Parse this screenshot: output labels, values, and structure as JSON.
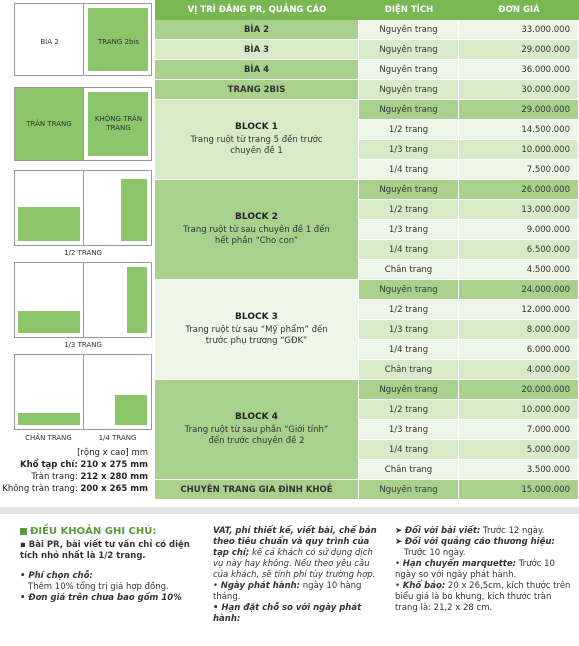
{
  "illustrations": {
    "pair1_left": "BÌA 2",
    "pair1_right": "TRANG 2bis",
    "pair2_left": "TRÀN TRANG",
    "pair2_right": "KHÔNG TRÀN TRANG",
    "half_page": "1/2 TRANG",
    "third_page": "1/3 TRANG",
    "bottom_page": "CHÂN TRANG",
    "quarter_page": "1/4 TRANG"
  },
  "sizes": {
    "unit": "[rộng x cao] mm",
    "magazine_label": "Khổ tạp chí:",
    "magazine_value": "210 x 275 mm",
    "bleed_label": "Tràn trang:",
    "bleed_value": "212 x 280 mm",
    "nobleed_label": "Không tràn trang:",
    "nobleed_value": "200 x 265 mm"
  },
  "table": {
    "headers": [
      "VỊ TRÍ ĐĂNG PR, QUẢNG CÁO",
      "DIỆN TÍCH",
      "ĐƠN GIÁ"
    ],
    "simple_rows": [
      {
        "pos": "BÌA 2",
        "area": "Nguyên trang",
        "price": "33.000.000"
      },
      {
        "pos": "BÌA 3",
        "area": "Nguyên trang",
        "price": "29.000.000"
      },
      {
        "pos": "BÌA 4",
        "area": "Nguyên trang",
        "price": "36.000.000"
      },
      {
        "pos": "TRANG 2BIS",
        "area": "Nguyên trang",
        "price": "30.000.000"
      }
    ],
    "blocks": [
      {
        "title": "BLOCK 1",
        "desc": "Trang ruột từ trang 5 đến trước chuyên đề 1",
        "rows": [
          {
            "area": "Nguyên trang",
            "price": "29.000.000"
          },
          {
            "area": "1/2 trang",
            "price": "14.500.000"
          },
          {
            "area": "1/3 trang",
            "price": "10.000.000"
          },
          {
            "area": "1/4 trang",
            "price": "7.500.000"
          }
        ]
      },
      {
        "title": "BLOCK 2",
        "desc": "Trang ruột  từ sau chuyên đề 1 đến hết phần  “Cho con”",
        "rows": [
          {
            "area": "Nguyên trang",
            "price": "26.000.000"
          },
          {
            "area": "1/2 trang",
            "price": "13.000.000"
          },
          {
            "area": "1/3 trang",
            "price": "9.000.000"
          },
          {
            "area": "1/4 trang",
            "price": "6.500.000"
          },
          {
            "area": "Chân trang",
            "price": "4.500.000"
          }
        ]
      },
      {
        "title": "BLOCK 3",
        "desc": "Trang ruột từ sau “Mỹ phẩm” đến trước phụ trương “GĐK”",
        "rows": [
          {
            "area": "Nguyên trang",
            "price": "24.000.000"
          },
          {
            "area": "1/2 trang",
            "price": "12.000.000"
          },
          {
            "area": "1/3 trang",
            "price": "8.000.000"
          },
          {
            "area": "1/4 trang",
            "price": "6.000.000"
          },
          {
            "area": "Chân trang",
            "price": "4.000.000"
          }
        ]
      },
      {
        "title": "BLOCK 4",
        "desc": "Trang ruột từ sau phần “Giới tính” đến trước chuyên đề 2",
        "rows": [
          {
            "area": "Nguyên trang",
            "price": "20.000.000"
          },
          {
            "area": "1/2 trang",
            "price": "10.000.000"
          },
          {
            "area": "1/3 trang",
            "price": "7.000.000"
          },
          {
            "area": "1/4 trang",
            "price": "5.000.000"
          },
          {
            "area": "Chân trang",
            "price": "3.500.000"
          }
        ]
      }
    ],
    "final_row": {
      "pos": "CHUYÊN TRANG  GIA ĐÌNH KHOẺ",
      "area": "Nguyên trang",
      "price": "15.000.000"
    }
  },
  "notes": {
    "title": "ĐIỀU KHOẢN  GHI CHÚ:",
    "pr_note": "Bài PR, bài viết tư vấn chỉ có diện tích nhỏ nhất là 1/2 trang.",
    "position_fee_label": "Phí chọn chỗ:",
    "position_fee_value": "Thêm 10% tổng trị giá hợp đồng.",
    "price_note_start": "Đơn giá trên chưa bao gồm 10%",
    "price_note_cont": "VAT, phí thiết kế, viết bài, chế bản theo tiêu chuẩn và quy trình của tạp chí;",
    "price_note_end": " kế cả khách có sử dụng dịch vụ này hay không. Nếu theo yêu cầu của khách, sẽ tính phí tùy trường hợp.",
    "release_label": "Ngày phát hành:",
    "release_value": " ngày 10 hàng tháng.",
    "deadline_label": "Hạn đặt chỗ so với ngày phát hành:",
    "article_label": "Đối với bài viết:",
    "article_value": " Trước 12 ngày.",
    "brand_label": "Đối với quảng cáo thương hiệu:",
    "brand_value": "Trước 10 ngày.",
    "marquette_label": "Hạn chuyển marquette:",
    "marquette_value": " Trước 10 ngày so với ngày phát hành.",
    "format_label": "Khổ báo:",
    "format_value": " 20 x 26,5cm, kích thước trên biểu giá là bo khung, kích thước tràn trang là: 21,2 x 28 cm."
  },
  "colors": {
    "header_green": "#79b752",
    "row_green": "#a9d18e",
    "light_green": "#d7ebc8",
    "lightest_green": "#eef6e7",
    "note_green": "#5a9a3a"
  }
}
